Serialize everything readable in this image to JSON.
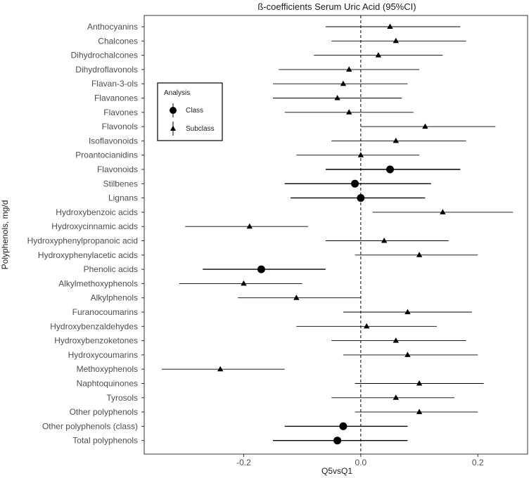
{
  "chart_data": {
    "type": "forest",
    "title": "ß-coefficients Serum Uric Acid (95%CI)",
    "xlabel": "Q5vsQ1",
    "ylabel": "Polyphenols, mg/d",
    "xlim": [
      -0.37,
      0.285
    ],
    "xticks": [
      -0.2,
      0.0,
      0.2
    ],
    "xtick_labels": [
      "-0.2",
      "0.0",
      "0.2"
    ],
    "reference_line": 0,
    "grid": false,
    "legend": {
      "title": "Analysis",
      "placement": "top-left",
      "entries": [
        {
          "label": "Class",
          "marker": "circle"
        },
        {
          "label": "Subclass",
          "marker": "triangle"
        }
      ]
    },
    "rows": [
      {
        "label": "Anthocyanins",
        "estimate": 0.05,
        "lower": -0.06,
        "upper": 0.17,
        "analysis": "Subclass"
      },
      {
        "label": "Chalcones",
        "estimate": 0.06,
        "lower": -0.05,
        "upper": 0.18,
        "analysis": "Subclass"
      },
      {
        "label": "Dihydrochalcones",
        "estimate": 0.03,
        "lower": -0.08,
        "upper": 0.14,
        "analysis": "Subclass"
      },
      {
        "label": "Dihydroflavonols",
        "estimate": -0.02,
        "lower": -0.14,
        "upper": 0.1,
        "analysis": "Subclass"
      },
      {
        "label": "Flavan-3-ols",
        "estimate": -0.03,
        "lower": -0.15,
        "upper": 0.08,
        "analysis": "Subclass"
      },
      {
        "label": "Flavanones",
        "estimate": -0.04,
        "lower": -0.15,
        "upper": 0.07,
        "analysis": "Subclass"
      },
      {
        "label": "Flavones",
        "estimate": -0.02,
        "lower": -0.13,
        "upper": 0.09,
        "analysis": "Subclass"
      },
      {
        "label": "Flavonols",
        "estimate": 0.11,
        "lower": 0.0,
        "upper": 0.23,
        "analysis": "Subclass"
      },
      {
        "label": "Isoflavonoids",
        "estimate": 0.06,
        "lower": -0.05,
        "upper": 0.18,
        "analysis": "Subclass"
      },
      {
        "label": "Proantocianidins",
        "estimate": 0.0,
        "lower": -0.11,
        "upper": 0.1,
        "analysis": "Subclass"
      },
      {
        "label": "Flavonoids",
        "estimate": 0.05,
        "lower": -0.06,
        "upper": 0.17,
        "analysis": "Class"
      },
      {
        "label": "Stilbenes",
        "estimate": -0.01,
        "lower": -0.13,
        "upper": 0.12,
        "analysis": "Class"
      },
      {
        "label": "Lignans",
        "estimate": 0.0,
        "lower": -0.12,
        "upper": 0.11,
        "analysis": "Class"
      },
      {
        "label": "Hydroxybenzoic acids",
        "estimate": 0.14,
        "lower": 0.02,
        "upper": 0.26,
        "analysis": "Subclass"
      },
      {
        "label": "Hydroxycinnamic acids",
        "estimate": -0.19,
        "lower": -0.3,
        "upper": -0.09,
        "analysis": "Subclass"
      },
      {
        "label": "Hydroxyphenylpropanoic acid",
        "estimate": 0.04,
        "lower": -0.06,
        "upper": 0.15,
        "analysis": "Subclass"
      },
      {
        "label": "Hydroxyphenylacetic acids",
        "estimate": 0.1,
        "lower": -0.01,
        "upper": 0.2,
        "analysis": "Subclass"
      },
      {
        "label": "Phenolic acids",
        "estimate": -0.17,
        "lower": -0.27,
        "upper": -0.06,
        "analysis": "Class"
      },
      {
        "label": "Alkylmethoxyphenols",
        "estimate": -0.2,
        "lower": -0.31,
        "upper": -0.1,
        "analysis": "Subclass"
      },
      {
        "label": "Alkylphenols",
        "estimate": -0.11,
        "lower": -0.21,
        "upper": 0.0,
        "analysis": "Subclass"
      },
      {
        "label": "Furanocoumarins",
        "estimate": 0.08,
        "lower": -0.03,
        "upper": 0.19,
        "analysis": "Subclass"
      },
      {
        "label": "Hydroxybenzaldehydes",
        "estimate": 0.01,
        "lower": -0.11,
        "upper": 0.13,
        "analysis": "Subclass"
      },
      {
        "label": "Hydroxybenzoketones",
        "estimate": 0.06,
        "lower": -0.05,
        "upper": 0.18,
        "analysis": "Subclass"
      },
      {
        "label": "Hydroxycoumarins",
        "estimate": 0.08,
        "lower": -0.03,
        "upper": 0.2,
        "analysis": "Subclass"
      },
      {
        "label": "Methoxyphenols",
        "estimate": -0.24,
        "lower": -0.34,
        "upper": -0.13,
        "analysis": "Subclass"
      },
      {
        "label": "Naphtoquinones",
        "estimate": 0.1,
        "lower": -0.01,
        "upper": 0.21,
        "analysis": "Subclass"
      },
      {
        "label": "Tyrosols",
        "estimate": 0.06,
        "lower": -0.05,
        "upper": 0.16,
        "analysis": "Subclass"
      },
      {
        "label": "Other polyphenols",
        "estimate": 0.1,
        "lower": -0.01,
        "upper": 0.2,
        "analysis": "Subclass"
      },
      {
        "label": "Other polyphenols (class)",
        "estimate": -0.03,
        "lower": -0.13,
        "upper": 0.08,
        "analysis": "Class"
      },
      {
        "label": "Total polyphenols",
        "estimate": -0.04,
        "lower": -0.15,
        "upper": 0.08,
        "analysis": "Class"
      }
    ]
  }
}
